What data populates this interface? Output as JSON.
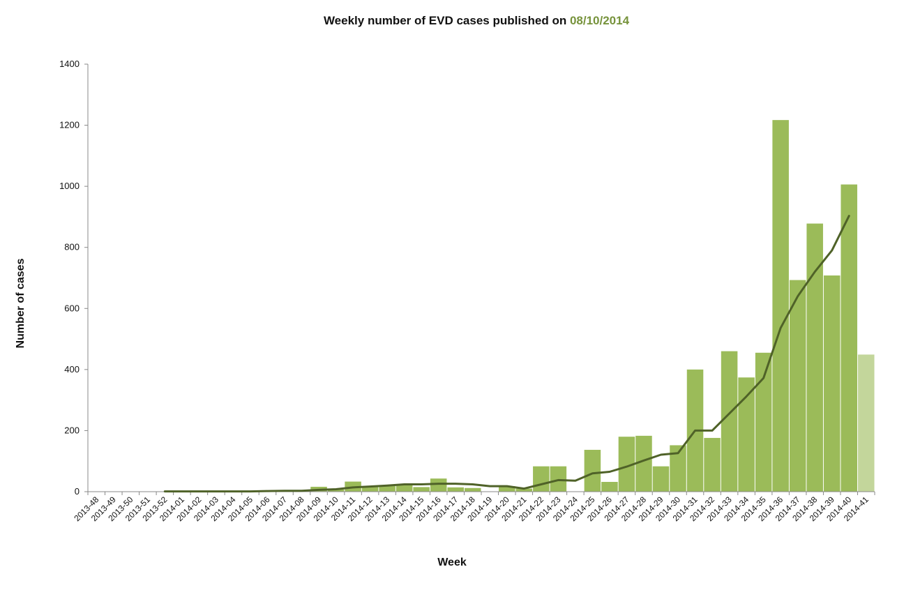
{
  "chart_data": {
    "type": "bar",
    "title": "Weekly number of EVD cases published on",
    "title_date": "08/10/2014",
    "xlabel": "Week",
    "ylabel": "Number of cases",
    "ylim": [
      0,
      1400
    ],
    "yticks": [
      0,
      200,
      400,
      600,
      800,
      1000,
      1200,
      1400
    ],
    "grid": false,
    "categories": [
      "2013-48",
      "2013-49",
      "2013-50",
      "2013-51",
      "2013-52",
      "2014-01",
      "2014-02",
      "2014-03",
      "2014-04",
      "2014-05",
      "2014-06",
      "2014-07",
      "2014-08",
      "2014-09",
      "2014-10",
      "2014-11",
      "2014-12",
      "2014-13",
      "2014-14",
      "2014-15",
      "2014-16",
      "2014-17",
      "2014-18",
      "2014-19",
      "2014-20",
      "2014-21",
      "2014-22",
      "2014-23",
      "2014-24",
      "2014-25",
      "2014-26",
      "2014-27",
      "2014-28",
      "2014-29",
      "2014-30",
      "2014-31",
      "2014-32",
      "2014-33",
      "2014-34",
      "2014-35",
      "2014-36",
      "2014-37",
      "2014-38",
      "2014-39",
      "2014-40",
      "2014-41"
    ],
    "series": [
      {
        "kind": "bar",
        "color": "#9bbb59",
        "values": [
          0,
          0,
          0,
          0,
          1,
          1,
          1,
          1,
          1,
          1,
          2,
          4,
          3,
          16,
          7,
          33,
          15,
          20,
          25,
          15,
          43,
          14,
          12,
          0,
          18,
          10,
          83,
          83,
          0,
          137,
          32,
          180,
          183,
          83,
          152,
          400,
          176,
          460,
          374,
          455,
          1217,
          693,
          878,
          708,
          1006,
          449
        ]
      },
      {
        "kind": "line",
        "color": "#4f6228",
        "values": [
          null,
          null,
          null,
          null,
          1,
          1,
          1,
          1,
          1,
          1,
          2,
          3,
          3,
          6,
          8,
          14,
          17,
          20,
          24,
          24,
          26,
          26,
          24,
          18,
          18,
          10,
          24,
          38,
          36,
          60,
          65,
          82,
          102,
          121,
          126,
          200,
          200,
          256,
          312,
          372,
          536,
          640,
          720,
          790,
          903,
          null
        ]
      }
    ],
    "partial_bar_color": "#c3d69b"
  }
}
